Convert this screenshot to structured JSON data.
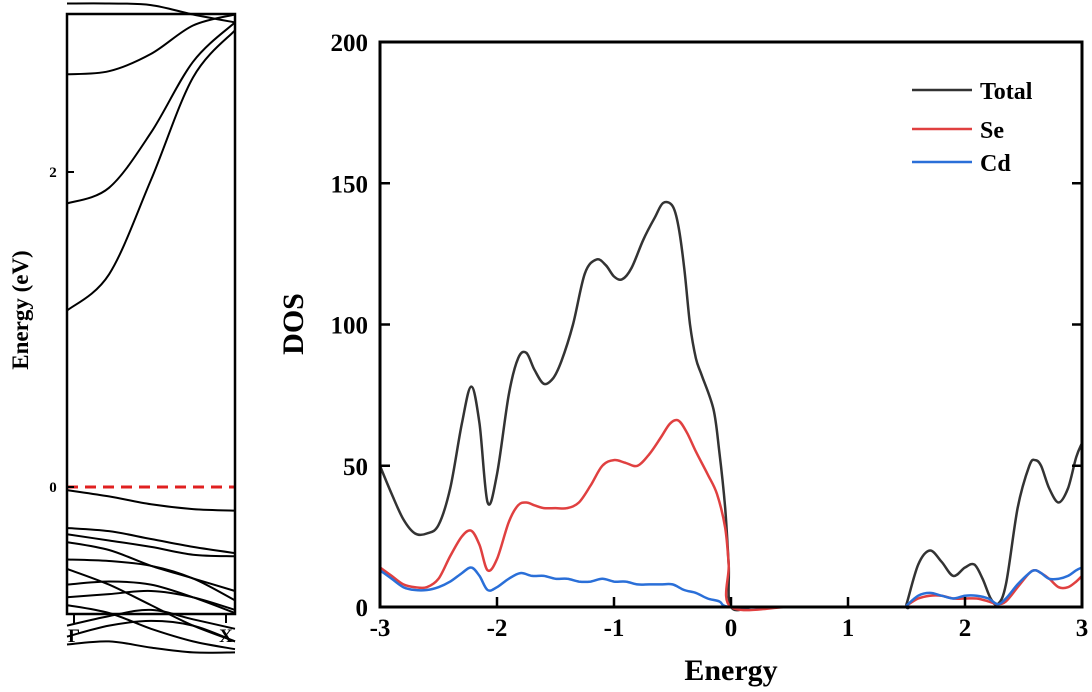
{
  "chart_data": [
    {
      "type": "line",
      "title": "",
      "ylabel": "Energy (eV)",
      "xlabel": "",
      "x_tick_labels": [
        "Γ",
        "X"
      ],
      "y_tick_labels": [
        "2",
        "0"
      ],
      "ylim": [
        -1.05,
        3.1
      ],
      "fermi_level": 0,
      "fermi_color": "#e02020",
      "band_color": "#000000",
      "bands": [
        {
          "k": [
            0,
            0.25,
            0.5,
            0.75,
            1
          ],
          "e": [
            3.07,
            3.07,
            3.06,
            3.0,
            2.95
          ]
        },
        {
          "k": [
            0,
            0.25,
            0.5,
            0.75,
            1
          ],
          "e": [
            2.62,
            2.64,
            2.75,
            2.93,
            3.0
          ]
        },
        {
          "k": [
            0,
            0.25,
            0.5,
            0.75,
            1
          ],
          "e": [
            1.8,
            1.9,
            2.25,
            2.7,
            2.95
          ]
        },
        {
          "k": [
            0,
            0.25,
            0.5,
            0.75,
            1
          ],
          "e": [
            1.12,
            1.35,
            1.95,
            2.6,
            2.9
          ]
        },
        {
          "k": [
            0,
            0.25,
            0.5,
            0.75,
            1
          ],
          "e": [
            -0.02,
            -0.06,
            -0.11,
            -0.14,
            -0.15
          ]
        },
        {
          "k": [
            0,
            0.25,
            0.5,
            0.75,
            1
          ],
          "e": [
            -0.26,
            -0.28,
            -0.33,
            -0.38,
            -0.42
          ]
        },
        {
          "k": [
            0,
            0.25,
            0.5,
            0.75,
            1
          ],
          "e": [
            -0.3,
            -0.34,
            -0.38,
            -0.43,
            -0.44
          ]
        },
        {
          "k": [
            0,
            0.25,
            0.5,
            0.75,
            1
          ],
          "e": [
            -0.35,
            -0.4,
            -0.5,
            -0.58,
            -0.66
          ]
        },
        {
          "k": [
            0,
            0.25,
            0.5,
            0.75,
            1
          ],
          "e": [
            -0.46,
            -0.47,
            -0.5,
            -0.58,
            -0.72
          ]
        },
        {
          "k": [
            0,
            0.25,
            0.5,
            0.75,
            1
          ],
          "e": [
            -0.52,
            -0.62,
            -0.75,
            -0.88,
            -0.98
          ]
        },
        {
          "k": [
            0,
            0.25,
            0.5,
            0.75,
            1
          ],
          "e": [
            -0.62,
            -0.6,
            -0.62,
            -0.7,
            -0.8
          ]
        },
        {
          "k": [
            0,
            0.25,
            0.5,
            0.75,
            1
          ],
          "e": [
            -0.7,
            -0.68,
            -0.66,
            -0.7,
            -0.78
          ]
        },
        {
          "k": [
            0,
            0.25,
            0.5,
            0.75,
            1
          ],
          "e": [
            -0.75,
            -0.8,
            -0.9,
            -0.98,
            -1.03
          ]
        },
        {
          "k": [
            0,
            0.25,
            0.5,
            0.75,
            1
          ],
          "e": [
            -0.88,
            -0.82,
            -0.78,
            -0.84,
            -0.9
          ]
        },
        {
          "k": [
            0,
            0.25,
            0.5,
            0.75,
            1
          ],
          "e": [
            -0.95,
            -0.88,
            -0.85,
            -0.88,
            -0.98
          ]
        },
        {
          "k": [
            0,
            0.25,
            0.5,
            0.75,
            1
          ],
          "e": [
            -1.0,
            -0.98,
            -1.02,
            -1.05,
            -1.05
          ]
        }
      ]
    },
    {
      "type": "line",
      "title": "",
      "xlabel": "Energy",
      "ylabel": "DOS",
      "xlim": [
        -3,
        3
      ],
      "ylim": [
        0,
        200
      ],
      "x_ticks": [
        -3,
        -2,
        -1,
        0,
        1,
        2,
        3
      ],
      "y_ticks": [
        0,
        50,
        100,
        150,
        200
      ],
      "legend_position": "top-right",
      "series": [
        {
          "name": "Total",
          "color": "#333333",
          "x": [
            -3.0,
            -2.9,
            -2.8,
            -2.7,
            -2.6,
            -2.5,
            -2.4,
            -2.3,
            -2.22,
            -2.15,
            -2.08,
            -2.0,
            -1.9,
            -1.82,
            -1.75,
            -1.68,
            -1.6,
            -1.52,
            -1.45,
            -1.35,
            -1.25,
            -1.15,
            -1.07,
            -1.0,
            -0.93,
            -0.85,
            -0.75,
            -0.65,
            -0.58,
            -0.5,
            -0.45,
            -0.4,
            -0.35,
            -0.3,
            -0.25,
            -0.15,
            -0.1,
            -0.05,
            -0.02,
            0.0,
            0.2,
            0.5,
            1.0,
            1.48,
            1.5,
            1.6,
            1.7,
            1.8,
            1.9,
            2.0,
            2.08,
            2.15,
            2.22,
            2.28,
            2.35,
            2.45,
            2.55,
            2.6,
            2.65,
            2.72,
            2.8,
            2.88,
            2.95,
            3.0
          ],
          "y": [
            50,
            40,
            31,
            26,
            26,
            29,
            42,
            65,
            78,
            65,
            37,
            47,
            75,
            88,
            90,
            84,
            79,
            81,
            87,
            100,
            118,
            123,
            121,
            117,
            116,
            120,
            130,
            138,
            143,
            142,
            135,
            120,
            100,
            88,
            82,
            70,
            55,
            35,
            15,
            0,
            0,
            0,
            0,
            0,
            1,
            15,
            20,
            16,
            11,
            14,
            15,
            10,
            3,
            1,
            8,
            35,
            50,
            52,
            50,
            42,
            37,
            42,
            53,
            58
          ]
        },
        {
          "name": "Se",
          "color": "#e04040",
          "x": [
            -3.0,
            -2.9,
            -2.8,
            -2.7,
            -2.6,
            -2.5,
            -2.4,
            -2.3,
            -2.22,
            -2.15,
            -2.08,
            -2.0,
            -1.9,
            -1.82,
            -1.75,
            -1.68,
            -1.6,
            -1.5,
            -1.4,
            -1.3,
            -1.2,
            -1.1,
            -1.0,
            -0.9,
            -0.8,
            -0.7,
            -0.6,
            -0.52,
            -0.45,
            -0.38,
            -0.3,
            -0.2,
            -0.12,
            -0.05,
            -0.02,
            0.0,
            0.5,
            1.0,
            1.48,
            1.5,
            1.6,
            1.7,
            1.8,
            1.9,
            2.0,
            2.1,
            2.2,
            2.28,
            2.35,
            2.45,
            2.55,
            2.6,
            2.65,
            2.72,
            2.8,
            2.88,
            2.95,
            3.0
          ],
          "y": [
            14,
            11,
            8,
            7,
            7,
            10,
            18,
            25,
            27,
            22,
            13,
            17,
            30,
            36,
            37,
            36,
            35,
            35,
            35,
            37,
            43,
            50,
            52,
            51,
            50,
            54,
            60,
            65,
            66,
            62,
            55,
            47,
            40,
            28,
            15,
            0,
            0,
            0,
            0,
            0.5,
            3,
            4,
            4,
            3,
            3,
            3,
            2,
            1,
            2,
            7,
            12,
            13,
            12,
            10,
            7,
            7,
            9,
            11
          ]
        },
        {
          "name": "Cd",
          "color": "#2a6fd8",
          "x": [
            -3.0,
            -2.9,
            -2.8,
            -2.7,
            -2.6,
            -2.5,
            -2.4,
            -2.3,
            -2.22,
            -2.15,
            -2.08,
            -2.0,
            -1.9,
            -1.8,
            -1.7,
            -1.6,
            -1.5,
            -1.4,
            -1.3,
            -1.2,
            -1.1,
            -1.0,
            -0.9,
            -0.8,
            -0.7,
            -0.6,
            -0.5,
            -0.4,
            -0.3,
            -0.2,
            -0.1,
            0.0,
            0.5,
            1.0,
            1.48,
            1.5,
            1.6,
            1.7,
            1.8,
            1.9,
            2.0,
            2.1,
            2.2,
            2.28,
            2.35,
            2.45,
            2.55,
            2.6,
            2.65,
            2.72,
            2.8,
            2.88,
            2.95,
            3.0
          ],
          "y": [
            13,
            10,
            7,
            6,
            6,
            7,
            9,
            12,
            14,
            11,
            6,
            7,
            10,
            12,
            11,
            11,
            10,
            10,
            9,
            9,
            10,
            9,
            9,
            8,
            8,
            8,
            8,
            6,
            5,
            3,
            2,
            0,
            0,
            0,
            0,
            0.5,
            4,
            5,
            4,
            3,
            4,
            4,
            3,
            1,
            3,
            8,
            12,
            13,
            12,
            10,
            10,
            11,
            13,
            14
          ]
        }
      ]
    }
  ]
}
